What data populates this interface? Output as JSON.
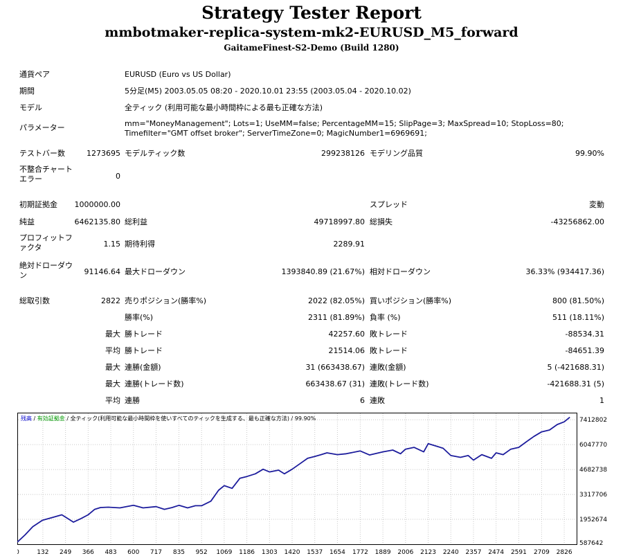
{
  "header": {
    "title": "Strategy Tester Report",
    "subtitle": "mmbotmaker-replica-system-mk2-EURUSD_M5_forward",
    "server": "GaitameFinest-S2-Demo (Build 1280)"
  },
  "settings": {
    "symbol_label": "通貨ペア",
    "symbol_value": "EURUSD (Euro vs US Dollar)",
    "period_label": "期間",
    "period_value": "5分足(M5) 2003.05.05 08:20 - 2020.10.01 23:55 (2003.05.04 - 2020.10.02)",
    "model_label": "モデル",
    "model_value": "全ティック (利用可能な最小時間枠による最も正確な方法)",
    "params_label": "パラメーター",
    "params_value": "mm=\"MoneyManagement\"; Lots=1; UseMM=false; PercentageMM=15; SlipPage=3; MaxSpread=10; StopLoss=80; Timefilter=\"GMT offset broker\"; ServerTimeZone=0; MagicNumber1=6969691;"
  },
  "stats": {
    "bars_label": "テストバー数",
    "bars_value": "1273695",
    "ticks_label": "モデルティック数",
    "ticks_value": "299238126",
    "quality_label": "モデリング品質",
    "quality_value": "99.90%",
    "mismatch_label": "不整合チャートエラー",
    "mismatch_value": "0",
    "deposit_label": "初期証拠金",
    "deposit_value": "1000000.00",
    "spread_label": "スプレッド",
    "spread_value": "変動",
    "net_label": "純益",
    "net_value": "6462135.80",
    "gross_profit_label": "総利益",
    "gross_profit_value": "49718997.80",
    "gross_loss_label": "総損失",
    "gross_loss_value": "-43256862.00",
    "pf_label": "プロフィットファクタ",
    "pf_value": "1.15",
    "expected_label": "期待利得",
    "expected_value": "2289.91",
    "abs_dd_label": "絶対ドローダウン",
    "abs_dd_value": "91146.64",
    "max_dd_label": "最大ドローダウン",
    "max_dd_value": "1393840.89 (21.67%)",
    "rel_dd_label": "相対ドローダウン",
    "rel_dd_value": "36.33% (934417.36)",
    "trades_label": "総取引数",
    "trades_value": "2822",
    "short_label": "売りポジション(勝率%)",
    "short_value": "2022 (82.05%)",
    "long_label": "買いポジション(勝率%)",
    "long_value": "800 (81.50%)",
    "win_label": "勝率(%)",
    "win_value": "2311 (81.89%)",
    "loss_label": "負率 (%)",
    "loss_value": "511 (18.11%)",
    "largest_prefix": "最大",
    "avg_prefix": "平均",
    "largest_win_label": "勝トレード",
    "largest_win_value": "42257.60",
    "largest_loss_label": "敗トレード",
    "largest_loss_value": "-88534.31",
    "avg_win_label": "勝トレード",
    "avg_win_value": "21514.06",
    "avg_loss_label": "敗トレード",
    "avg_loss_value": "-84651.39",
    "max_consec_wins_label": "連勝(金額)",
    "max_consec_wins_value": "31 (663438.67)",
    "max_consec_losses_label": "連敗(金額)",
    "max_consec_losses_value": "5 (-421688.31)",
    "max_consec_profit_label": "連勝(トレード数)",
    "max_consec_profit_value": "663438.67 (31)",
    "max_consec_loss_label": "連敗(トレード数)",
    "max_consec_loss_value": "-421688.31 (5)",
    "avg_consec_wins_label": "連勝",
    "avg_consec_wins_value": "6",
    "avg_consec_losses_label": "連敗",
    "avg_consec_losses_value": "1"
  },
  "chart_legend": {
    "balance": "残高",
    "sep1": " / ",
    "equity": "有効証拠金",
    "sep2": " / ",
    "model": "全ティック(利用可能な最小時間枠を使いすべてのティックを生成する、最も正確な方法)",
    "quality": " / 99.90%"
  },
  "colors": {
    "line": "#1c1c9c",
    "balance": "#0000cc",
    "equity": "#009900",
    "grid": "#c8c8c8"
  },
  "chart_data": {
    "type": "line",
    "title": "",
    "xlabel": "",
    "ylabel": "",
    "x_ticks": [
      0,
      132,
      249,
      366,
      483,
      600,
      717,
      835,
      952,
      1069,
      1186,
      1303,
      1420,
      1537,
      1654,
      1772,
      1889,
      2006,
      2123,
      2240,
      2357,
      2474,
      2591,
      2709,
      2826
    ],
    "y_ticks": [
      587642,
      1952674,
      3317706,
      4682738,
      6047770,
      7412802
    ],
    "xlim": [
      0,
      2890
    ],
    "ylim": [
      587642,
      7800000
    ],
    "grid": true,
    "series": [
      {
        "x": [
          0,
          40,
          80,
          130,
          180,
          230,
          260,
          290,
          330,
          366,
          400,
          430,
          470,
          530,
          600,
          650,
          717,
          760,
          800,
          835,
          880,
          920,
          952,
          1000,
          1040,
          1069,
          1110,
          1150,
          1186,
          1230,
          1270,
          1303,
          1350,
          1380,
          1420,
          1460,
          1500,
          1537,
          1570,
          1600,
          1654,
          1700,
          1772,
          1820,
          1889,
          1940,
          1980,
          2006,
          2050,
          2100,
          2123,
          2170,
          2200,
          2240,
          2290,
          2330,
          2357,
          2400,
          2450,
          2474,
          2510,
          2550,
          2591,
          2630,
          2670,
          2709,
          2750,
          2790,
          2826,
          2855
        ],
        "values": [
          700000,
          1100000,
          1550000,
          1900000,
          2050000,
          2200000,
          2000000,
          1800000,
          2000000,
          2200000,
          2500000,
          2600000,
          2620000,
          2580000,
          2720000,
          2580000,
          2650000,
          2500000,
          2600000,
          2720000,
          2580000,
          2700000,
          2700000,
          2950000,
          3550000,
          3800000,
          3650000,
          4200000,
          4300000,
          4450000,
          4700000,
          4550000,
          4650000,
          4450000,
          4700000,
          5000000,
          5300000,
          5400000,
          5500000,
          5600000,
          5500000,
          5550000,
          5700000,
          5480000,
          5650000,
          5750000,
          5550000,
          5800000,
          5900000,
          5650000,
          6100000,
          5950000,
          5850000,
          5450000,
          5350000,
          5450000,
          5200000,
          5500000,
          5300000,
          5600000,
          5500000,
          5800000,
          5900000,
          6200000,
          6500000,
          6750000,
          6850000,
          7150000,
          7300000,
          7550000
        ]
      }
    ]
  }
}
